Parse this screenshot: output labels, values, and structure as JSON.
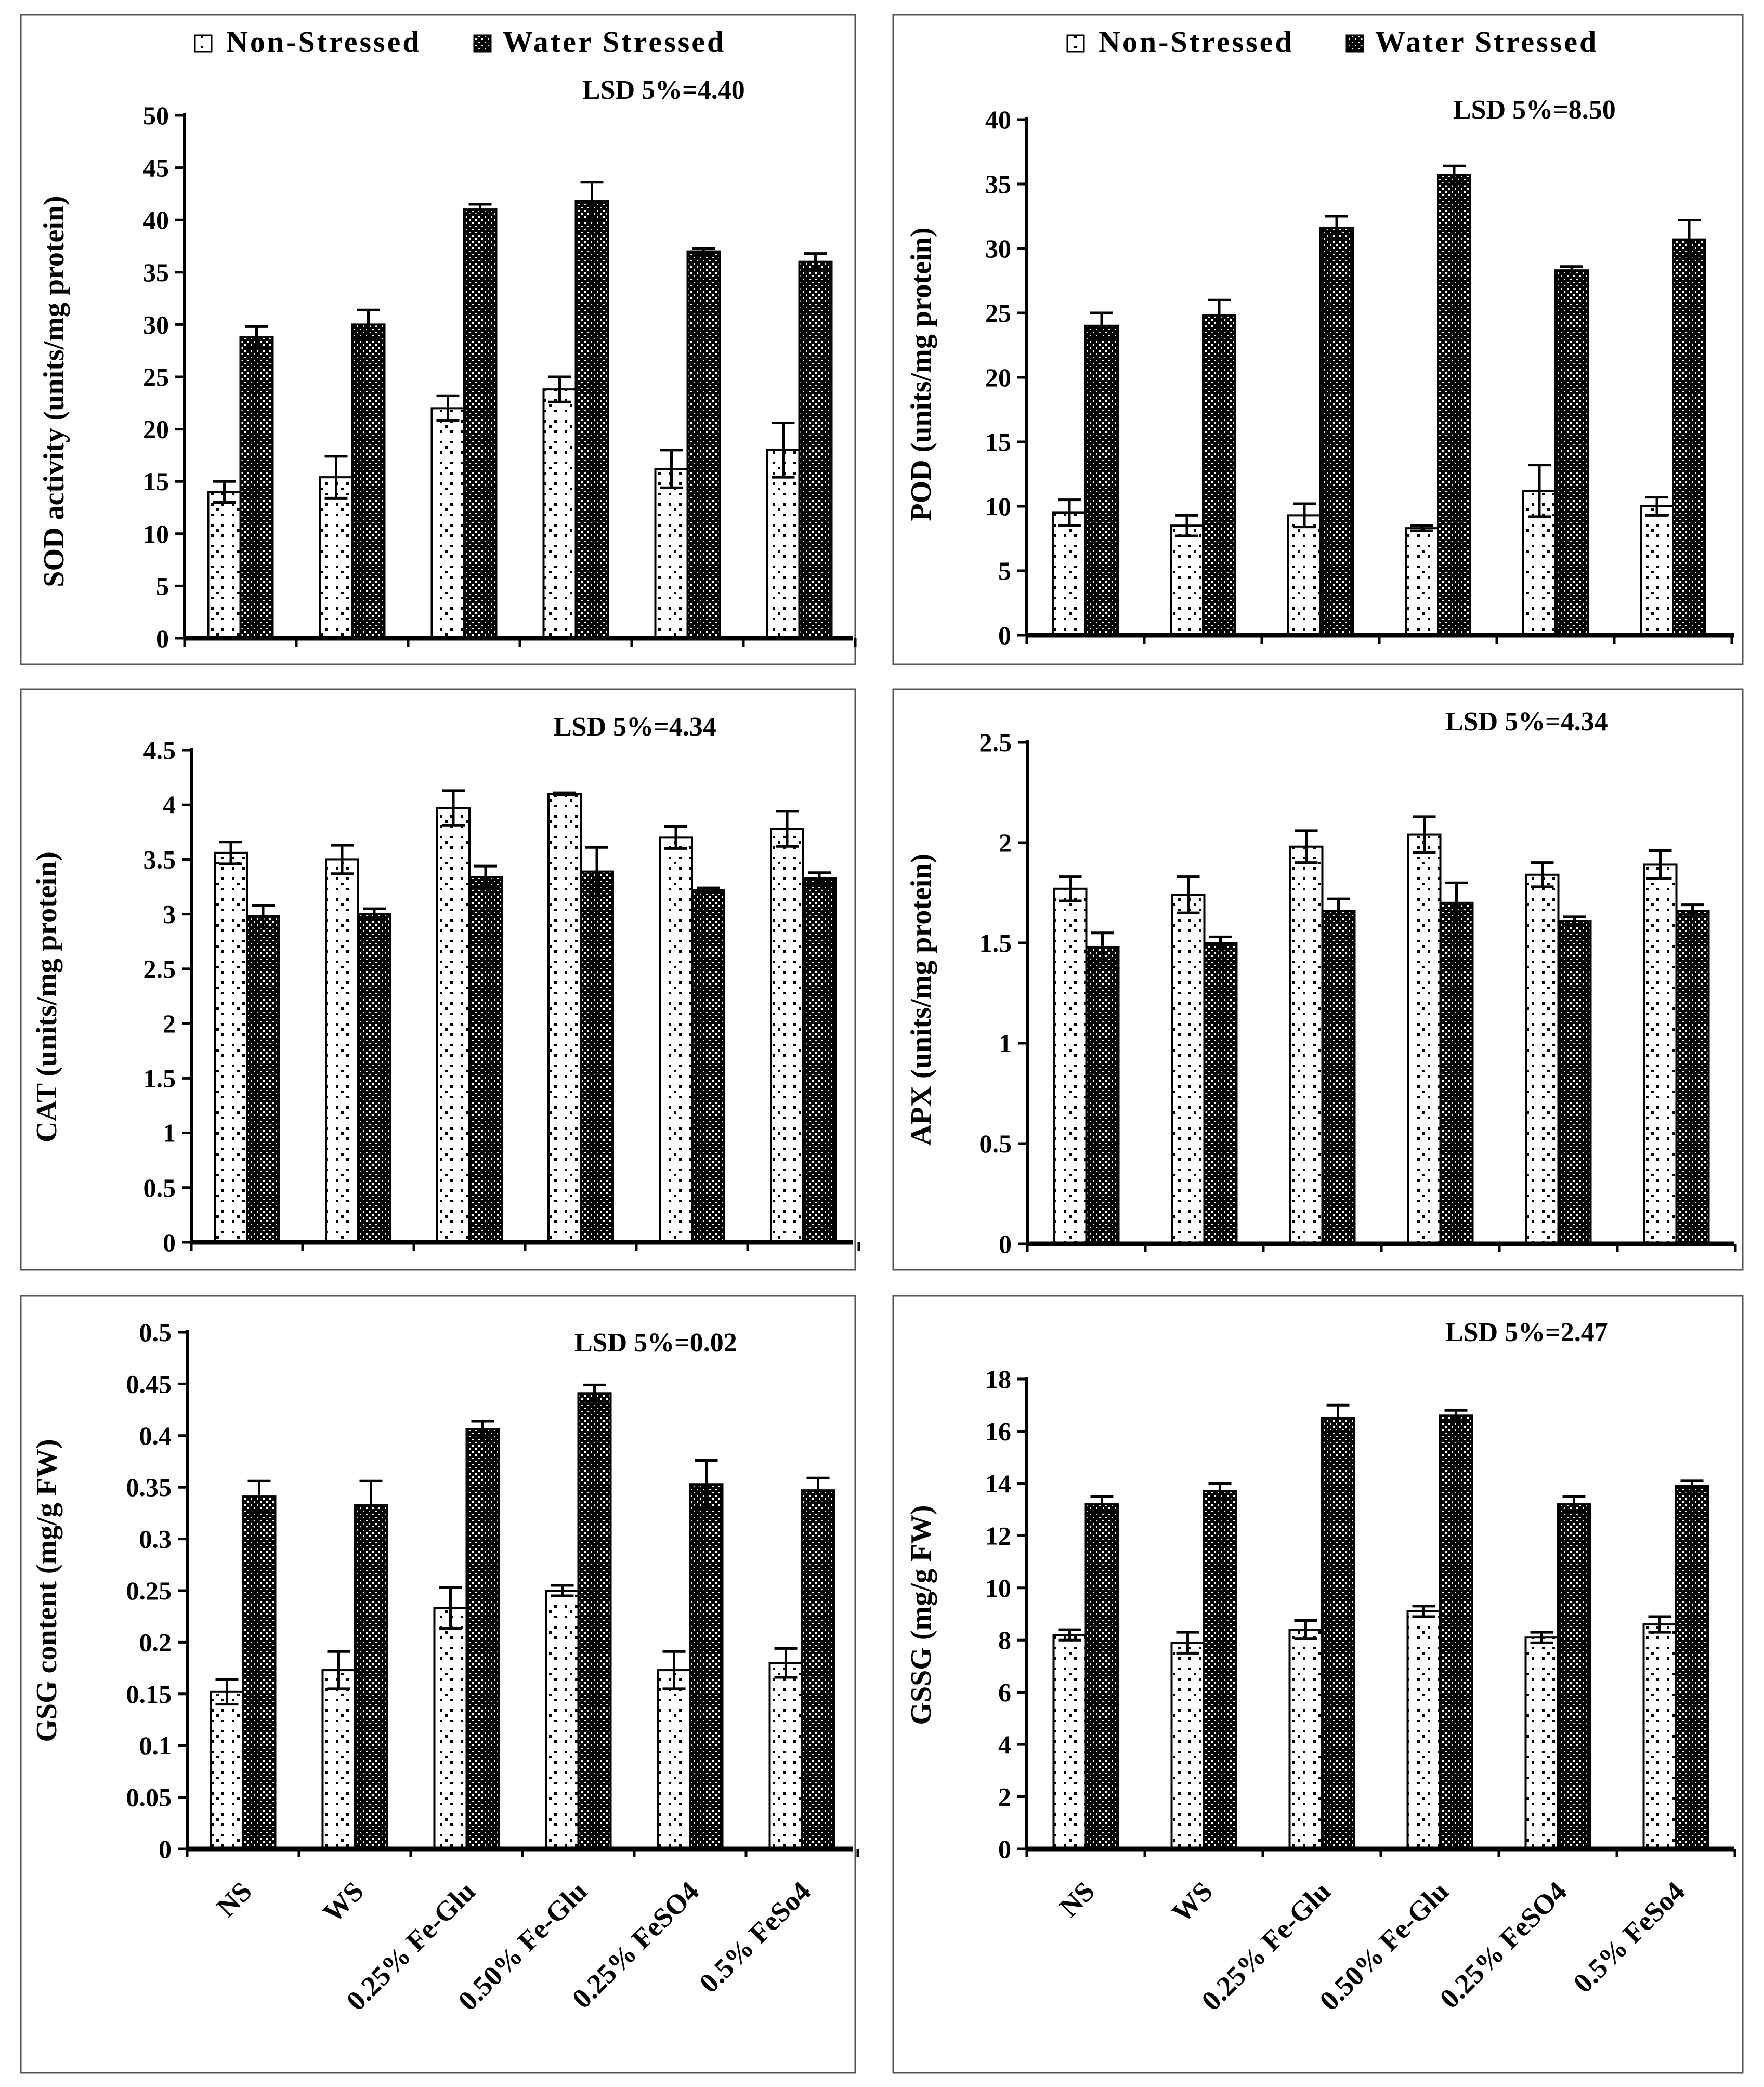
{
  "legend": {
    "non_stressed": "Non-Stressed",
    "water_stressed": "Water Stressed"
  },
  "categories": [
    "NS",
    "WS",
    "0.25% Fe-Glu",
    "0.50% Fe-Glu",
    "0.25% FeSO4",
    "0.5% FeSo4"
  ],
  "categories_right": [
    "NS",
    "WS",
    "0.25% Fe-Glu",
    "0.50% Fe-Glu",
    "0.25% FeSO4",
    "0.5% FeSo4"
  ],
  "chart_data": [
    {
      "type": "bar",
      "title": "",
      "ylabel": "SOD activity (units/mg protein)",
      "annotation": "LSD 5%=4.40",
      "ylim": [
        0,
        50
      ],
      "ytick_step": 5,
      "yticks": [
        "0",
        "5",
        "10",
        "15",
        "20",
        "25",
        "30",
        "35",
        "40",
        "45",
        "50"
      ],
      "series": [
        {
          "name": "Non-Stressed",
          "values": [
            14.0,
            15.4,
            22.0,
            23.8,
            16.2,
            18.0
          ],
          "errors": [
            1.0,
            2.0,
            1.2,
            1.2,
            1.8,
            2.6
          ]
        },
        {
          "name": "Water Stressed",
          "values": [
            28.8,
            30.0,
            41.0,
            41.8,
            37.0,
            36.0
          ],
          "errors": [
            1.0,
            1.4,
            0.5,
            1.8,
            0.3,
            0.8
          ]
        }
      ]
    },
    {
      "type": "bar",
      "title": "",
      "ylabel": "POD (units/mg protein)",
      "annotation": "LSD 5%=8.50",
      "ylim": [
        0,
        40
      ],
      "ytick_step": 5,
      "yticks": [
        "0",
        "5",
        "10",
        "15",
        "20",
        "25",
        "30",
        "35",
        "40"
      ],
      "series": [
        {
          "name": "Non-Stressed",
          "values": [
            9.5,
            8.5,
            9.3,
            8.3,
            11.2,
            10.0
          ],
          "errors": [
            1.0,
            0.8,
            0.9,
            0.2,
            2.0,
            0.7
          ]
        },
        {
          "name": "Water Stressed",
          "values": [
            24.0,
            24.8,
            31.6,
            35.7,
            28.3,
            30.7
          ],
          "errors": [
            1.0,
            1.2,
            0.9,
            0.7,
            0.3,
            1.5
          ]
        }
      ]
    },
    {
      "type": "bar",
      "title": "",
      "ylabel": "CAT (units/mg protein)",
      "annotation": "LSD 5%=4.34",
      "ylim": [
        0,
        4.5
      ],
      "ytick_step": 0.5,
      "yticks": [
        "0",
        "0.5",
        "1",
        "1.5",
        "2",
        "2.5",
        "3",
        "3.5",
        "4",
        "4.5"
      ],
      "series": [
        {
          "name": "Non-Stressed",
          "values": [
            3.56,
            3.5,
            3.97,
            4.1,
            3.7,
            3.78
          ],
          "errors": [
            0.1,
            0.13,
            0.16,
            0.01,
            0.1,
            0.16
          ]
        },
        {
          "name": "Water Stressed",
          "values": [
            2.98,
            3.0,
            3.34,
            3.39,
            3.22,
            3.33
          ],
          "errors": [
            0.1,
            0.05,
            0.1,
            0.22,
            0.02,
            0.05
          ]
        }
      ]
    },
    {
      "type": "bar",
      "title": "",
      "ylabel": "APX (units/mg protein)",
      "annotation": "LSD 5%=4.34",
      "ylim": [
        0,
        2.5
      ],
      "ytick_step": 0.5,
      "yticks": [
        "0",
        "0.5",
        "1",
        "1.5",
        "2",
        "2.5"
      ],
      "series": [
        {
          "name": "Non-Stressed",
          "values": [
            1.77,
            1.74,
            1.98,
            2.04,
            1.84,
            1.89
          ],
          "errors": [
            0.06,
            0.09,
            0.08,
            0.09,
            0.06,
            0.07
          ]
        },
        {
          "name": "Water Stressed",
          "values": [
            1.48,
            1.5,
            1.66,
            1.7,
            1.61,
            1.66
          ],
          "errors": [
            0.07,
            0.03,
            0.06,
            0.1,
            0.02,
            0.03
          ]
        }
      ]
    },
    {
      "type": "bar",
      "title": "",
      "ylabel": "GSG content (mg/g FW)",
      "annotation": "LSD 5%=0.02",
      "ylim": [
        0,
        0.5
      ],
      "ytick_step": 0.05,
      "yticks": [
        "0",
        "0.05",
        "0.1",
        "0.15",
        "0.2",
        "0.25",
        "0.3",
        "0.35",
        "0.4",
        "0.45",
        "0.5"
      ],
      "series": [
        {
          "name": "Non-Stressed",
          "values": [
            0.152,
            0.173,
            0.233,
            0.25,
            0.173,
            0.18
          ],
          "errors": [
            0.012,
            0.018,
            0.02,
            0.005,
            0.018,
            0.014
          ]
        },
        {
          "name": "Water Stressed",
          "values": [
            0.341,
            0.333,
            0.406,
            0.441,
            0.353,
            0.347
          ],
          "errors": [
            0.015,
            0.023,
            0.008,
            0.008,
            0.023,
            0.012
          ]
        }
      ]
    },
    {
      "type": "bar",
      "title": "",
      "ylabel": "GSSG  (mg/g FW)",
      "annotation": "LSD 5%=2.47",
      "ylim": [
        0,
        18
      ],
      "ytick_step": 2,
      "yticks": [
        "0",
        "2",
        "4",
        "6",
        "8",
        "10",
        "12",
        "14",
        "16",
        "18"
      ],
      "series": [
        {
          "name": "Non-Stressed",
          "values": [
            8.2,
            7.9,
            8.4,
            9.1,
            8.1,
            8.6
          ],
          "errors": [
            0.2,
            0.4,
            0.35,
            0.2,
            0.2,
            0.3
          ]
        },
        {
          "name": "Water Stressed",
          "values": [
            13.2,
            13.7,
            16.5,
            16.6,
            13.2,
            13.9
          ],
          "errors": [
            0.3,
            0.3,
            0.5,
            0.2,
            0.3,
            0.2
          ]
        }
      ]
    }
  ]
}
